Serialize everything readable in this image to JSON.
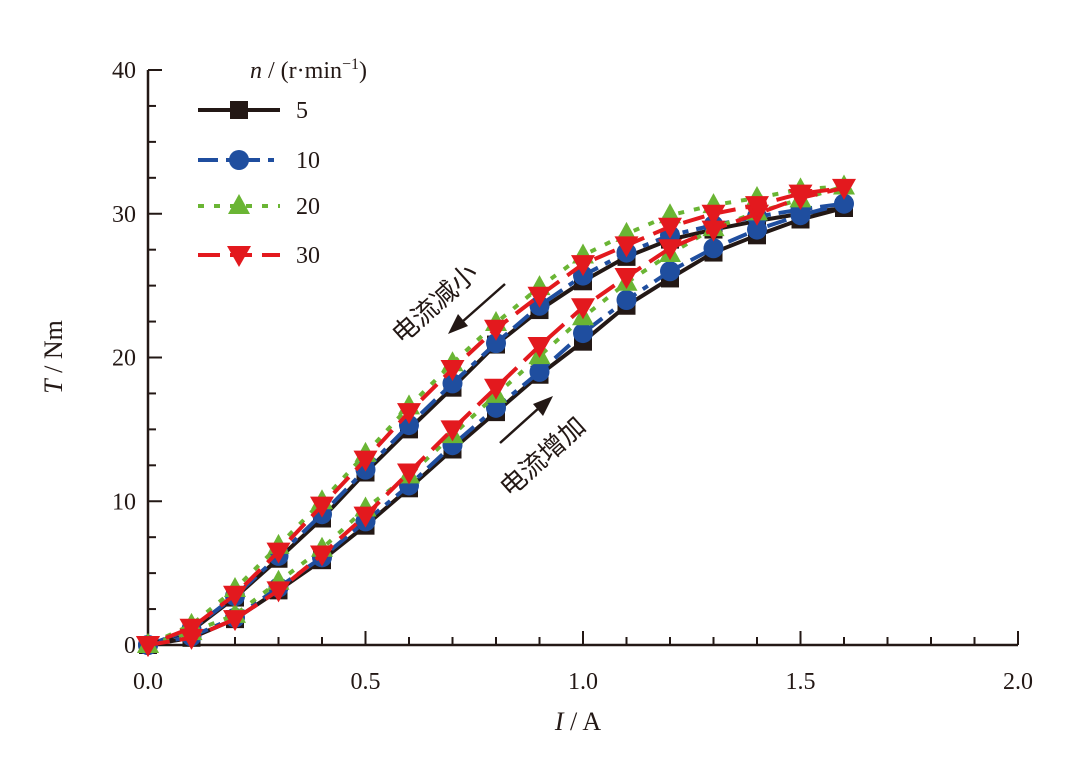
{
  "chart_data": {
    "type": "line",
    "xlabel_var": "I",
    "xlabel_unit": " / A",
    "ylabel_var": "T",
    "ylabel_unit": " / Nm",
    "xlim": [
      0,
      2.0
    ],
    "ylim": [
      0,
      40
    ],
    "x_ticks": [
      "0.0",
      "0.5",
      "1.0",
      "1.5",
      "2.0"
    ],
    "y_ticks": [
      "0",
      "10",
      "20",
      "30",
      "40"
    ],
    "grid": false,
    "legend_placement": "top-left",
    "legend_title_var": "n",
    "legend_title_unit": " / (r·min",
    "legend_title_exp": "−1",
    "legend_title_close": ")",
    "annotations": {
      "decreasing": "电流减小",
      "increasing": "电流增加"
    },
    "x": [
      0,
      0.1,
      0.2,
      0.3,
      0.4,
      0.5,
      0.6,
      0.7,
      0.8,
      0.9,
      1.0,
      1.1,
      1.2,
      1.3,
      1.4,
      1.5,
      1.6,
      1.5,
      1.4,
      1.3,
      1.2,
      1.1,
      1.0,
      0.9,
      0.8,
      0.7,
      0.6,
      0.5,
      0.4,
      0.3,
      0.2,
      0.1,
      0
    ],
    "series": [
      {
        "name": "5",
        "color": "#231815",
        "marker": "square",
        "line": "solid",
        "values": [
          0,
          0.5,
          1.8,
          3.8,
          5.9,
          8.3,
          10.9,
          13.6,
          16.2,
          18.8,
          21.1,
          23.6,
          25.5,
          27.3,
          28.5,
          29.6,
          30.4,
          30.0,
          29.5,
          28.9,
          28.2,
          27.0,
          25.3,
          23.3,
          20.9,
          17.9,
          15.0,
          12.0,
          8.8,
          6.0,
          3.3,
          1.0,
          0
        ]
      },
      {
        "name": "10",
        "color": "#1f4e9f",
        "marker": "circle",
        "line": "dash-dot",
        "values": [
          0,
          0.6,
          1.9,
          4.0,
          6.1,
          8.6,
          11.1,
          13.9,
          16.5,
          19.0,
          21.7,
          24.0,
          26.0,
          27.6,
          28.9,
          29.9,
          30.7,
          30.3,
          29.8,
          29.2,
          28.5,
          27.3,
          25.7,
          23.6,
          21.0,
          18.2,
          15.3,
          12.2,
          9.1,
          6.2,
          3.4,
          1.1,
          0
        ]
      },
      {
        "name": "20",
        "color": "#6ab534",
        "marker": "triangle-up",
        "line": "dotted",
        "values": [
          0,
          0.9,
          2.1,
          4.4,
          6.7,
          9.5,
          11.8,
          14.6,
          17.4,
          20.1,
          22.8,
          25.2,
          27.2,
          29.0,
          30.1,
          31.0,
          31.9,
          31.7,
          31.1,
          30.6,
          29.9,
          28.6,
          27.1,
          24.9,
          22.4,
          19.6,
          16.6,
          13.3,
          10.0,
          6.9,
          3.9,
          1.4,
          0
        ]
      },
      {
        "name": "30",
        "color": "#e3191e",
        "marker": "triangle-down",
        "line": "dashed",
        "values": [
          0,
          0.5,
          1.8,
          3.8,
          6.3,
          9.0,
          12.0,
          15.0,
          17.9,
          20.8,
          23.5,
          25.6,
          27.6,
          28.9,
          30.0,
          31.1,
          31.8,
          31.4,
          30.6,
          30.0,
          29.1,
          27.8,
          26.5,
          24.3,
          22.0,
          19.2,
          16.2,
          12.9,
          9.7,
          6.5,
          3.5,
          1.2,
          0
        ]
      }
    ]
  }
}
